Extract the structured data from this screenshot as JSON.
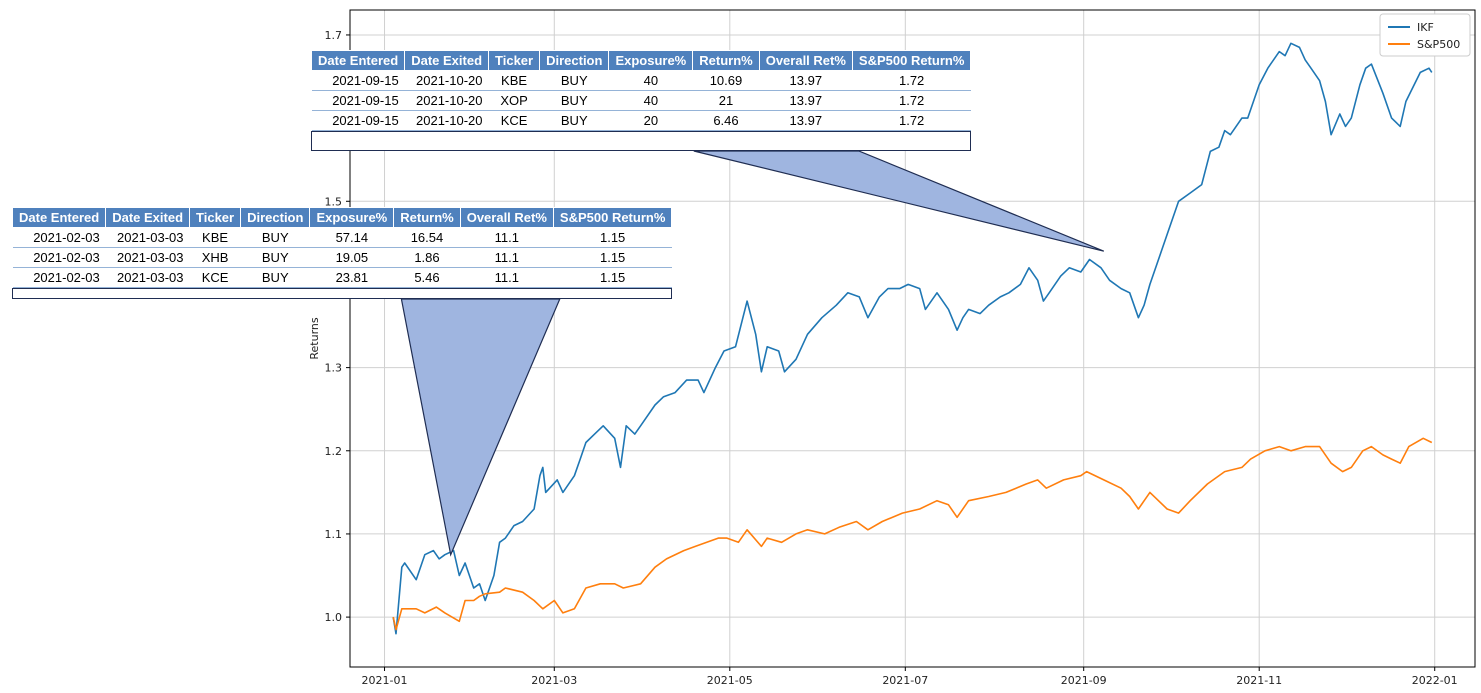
{
  "chart_data": {
    "type": "line",
    "title": "",
    "xlabel": "",
    "ylabel": "Returns",
    "x_tick_labels": [
      "2021-01",
      "2021-03",
      "2021-05",
      "2021-07",
      "2021-09",
      "2021-11",
      "2022-01"
    ],
    "y_tick_labels": [
      "1.0",
      "1.1",
      "1.2",
      "1.3",
      "1.5",
      "1.7"
    ],
    "xlim": [
      "2020-12-20",
      "2022-01-15"
    ],
    "ylim": [
      0.94,
      1.73
    ],
    "grid": true,
    "legend_position": "top-right",
    "series": [
      {
        "name": "IKF",
        "color": "#1f77b4",
        "points": [
          [
            "2021-01-04",
            1.0
          ],
          [
            "2021-01-05",
            0.98
          ],
          [
            "2021-01-07",
            1.06
          ],
          [
            "2021-01-08",
            1.065
          ],
          [
            "2021-01-12",
            1.045
          ],
          [
            "2021-01-15",
            1.075
          ],
          [
            "2021-01-18",
            1.08
          ],
          [
            "2021-01-20",
            1.07
          ],
          [
            "2021-01-22",
            1.075
          ],
          [
            "2021-01-25",
            1.08
          ],
          [
            "2021-01-27",
            1.05
          ],
          [
            "2021-01-29",
            1.065
          ],
          [
            "2021-02-01",
            1.035
          ],
          [
            "2021-02-03",
            1.04
          ],
          [
            "2021-02-05",
            1.02
          ],
          [
            "2021-02-08",
            1.05
          ],
          [
            "2021-02-10",
            1.09
          ],
          [
            "2021-02-12",
            1.095
          ],
          [
            "2021-02-15",
            1.11
          ],
          [
            "2021-02-18",
            1.115
          ],
          [
            "2021-02-22",
            1.13
          ],
          [
            "2021-02-24",
            1.17
          ],
          [
            "2021-02-25",
            1.18
          ],
          [
            "2021-02-26",
            1.15
          ],
          [
            "2021-03-02",
            1.165
          ],
          [
            "2021-03-04",
            1.15
          ],
          [
            "2021-03-08",
            1.17
          ],
          [
            "2021-03-10",
            1.19
          ],
          [
            "2021-03-12",
            1.21
          ],
          [
            "2021-03-15",
            1.22
          ],
          [
            "2021-03-18",
            1.23
          ],
          [
            "2021-03-22",
            1.215
          ],
          [
            "2021-03-24",
            1.18
          ],
          [
            "2021-03-26",
            1.23
          ],
          [
            "2021-03-29",
            1.22
          ],
          [
            "2021-03-31",
            1.23
          ],
          [
            "2021-04-05",
            1.255
          ],
          [
            "2021-04-08",
            1.265
          ],
          [
            "2021-04-12",
            1.27
          ],
          [
            "2021-04-16",
            1.285
          ],
          [
            "2021-04-20",
            1.285
          ],
          [
            "2021-04-22",
            1.27
          ],
          [
            "2021-04-26",
            1.3
          ],
          [
            "2021-04-29",
            1.32
          ],
          [
            "2021-05-03",
            1.325
          ],
          [
            "2021-05-07",
            1.38
          ],
          [
            "2021-05-10",
            1.34
          ],
          [
            "2021-05-12",
            1.295
          ],
          [
            "2021-05-14",
            1.325
          ],
          [
            "2021-05-18",
            1.32
          ],
          [
            "2021-05-20",
            1.295
          ],
          [
            "2021-05-24",
            1.31
          ],
          [
            "2021-05-28",
            1.34
          ],
          [
            "2021-06-02",
            1.36
          ],
          [
            "2021-06-07",
            1.375
          ],
          [
            "2021-06-11",
            1.39
          ],
          [
            "2021-06-15",
            1.385
          ],
          [
            "2021-06-18",
            1.36
          ],
          [
            "2021-06-22",
            1.385
          ],
          [
            "2021-06-25",
            1.395
          ],
          [
            "2021-06-29",
            1.395
          ],
          [
            "2021-07-02",
            1.4
          ],
          [
            "2021-07-06",
            1.395
          ],
          [
            "2021-07-08",
            1.37
          ],
          [
            "2021-07-12",
            1.39
          ],
          [
            "2021-07-16",
            1.37
          ],
          [
            "2021-07-19",
            1.345
          ],
          [
            "2021-07-21",
            1.36
          ],
          [
            "2021-07-23",
            1.37
          ],
          [
            "2021-07-27",
            1.365
          ],
          [
            "2021-07-30",
            1.375
          ],
          [
            "2021-08-03",
            1.385
          ],
          [
            "2021-08-06",
            1.39
          ],
          [
            "2021-08-10",
            1.4
          ],
          [
            "2021-08-13",
            1.42
          ],
          [
            "2021-08-16",
            1.405
          ],
          [
            "2021-08-18",
            1.38
          ],
          [
            "2021-08-20",
            1.39
          ],
          [
            "2021-08-24",
            1.41
          ],
          [
            "2021-08-27",
            1.42
          ],
          [
            "2021-08-31",
            1.415
          ],
          [
            "2021-09-03",
            1.43
          ],
          [
            "2021-09-07",
            1.42
          ],
          [
            "2021-09-10",
            1.405
          ],
          [
            "2021-09-14",
            1.395
          ],
          [
            "2021-09-17",
            1.39
          ],
          [
            "2021-09-20",
            1.36
          ],
          [
            "2021-09-22",
            1.375
          ],
          [
            "2021-09-24",
            1.4
          ],
          [
            "2021-09-27",
            1.43
          ],
          [
            "2021-09-30",
            1.46
          ],
          [
            "2021-10-04",
            1.5
          ],
          [
            "2021-10-08",
            1.51
          ],
          [
            "2021-10-12",
            1.52
          ],
          [
            "2021-10-15",
            1.56
          ],
          [
            "2021-10-18",
            1.565
          ],
          [
            "2021-10-20",
            1.585
          ],
          [
            "2021-10-22",
            1.58
          ],
          [
            "2021-10-26",
            1.6
          ],
          [
            "2021-10-28",
            1.6
          ],
          [
            "2021-11-01",
            1.64
          ],
          [
            "2021-11-04",
            1.66
          ],
          [
            "2021-11-08",
            1.68
          ],
          [
            "2021-11-10",
            1.675
          ],
          [
            "2021-11-12",
            1.69
          ],
          [
            "2021-11-15",
            1.685
          ],
          [
            "2021-11-17",
            1.67
          ],
          [
            "2021-11-19",
            1.66
          ],
          [
            "2021-11-22",
            1.645
          ],
          [
            "2021-11-24",
            1.62
          ],
          [
            "2021-11-26",
            1.58
          ],
          [
            "2021-11-29",
            1.605
          ],
          [
            "2021-12-01",
            1.59
          ],
          [
            "2021-12-03",
            1.6
          ],
          [
            "2021-12-06",
            1.64
          ],
          [
            "2021-12-08",
            1.66
          ],
          [
            "2021-12-10",
            1.665
          ],
          [
            "2021-12-14",
            1.63
          ],
          [
            "2021-12-17",
            1.6
          ],
          [
            "2021-12-20",
            1.59
          ],
          [
            "2021-12-22",
            1.62
          ],
          [
            "2021-12-27",
            1.655
          ],
          [
            "2021-12-30",
            1.66
          ],
          [
            "2021-12-31",
            1.655
          ]
        ]
      },
      {
        "name": "S&P500",
        "color": "#ff7f0e",
        "points": [
          [
            "2021-01-04",
            1.0
          ],
          [
            "2021-01-05",
            0.985
          ],
          [
            "2021-01-07",
            1.01
          ],
          [
            "2021-01-12",
            1.01
          ],
          [
            "2021-01-15",
            1.005
          ],
          [
            "2021-01-19",
            1.012
          ],
          [
            "2021-01-22",
            1.005
          ],
          [
            "2021-01-27",
            0.995
          ],
          [
            "2021-01-29",
            1.02
          ],
          [
            "2021-02-01",
            1.02
          ],
          [
            "2021-02-03",
            1.025
          ],
          [
            "2021-02-05",
            1.028
          ],
          [
            "2021-02-10",
            1.03
          ],
          [
            "2021-02-12",
            1.035
          ],
          [
            "2021-02-18",
            1.03
          ],
          [
            "2021-02-22",
            1.02
          ],
          [
            "2021-02-25",
            1.01
          ],
          [
            "2021-03-01",
            1.02
          ],
          [
            "2021-03-04",
            1.005
          ],
          [
            "2021-03-08",
            1.01
          ],
          [
            "2021-03-12",
            1.035
          ],
          [
            "2021-03-17",
            1.04
          ],
          [
            "2021-03-22",
            1.04
          ],
          [
            "2021-03-25",
            1.035
          ],
          [
            "2021-03-31",
            1.04
          ],
          [
            "2021-04-05",
            1.06
          ],
          [
            "2021-04-09",
            1.07
          ],
          [
            "2021-04-15",
            1.08
          ],
          [
            "2021-04-19",
            1.085
          ],
          [
            "2021-04-23",
            1.09
          ],
          [
            "2021-04-27",
            1.095
          ],
          [
            "2021-04-30",
            1.095
          ],
          [
            "2021-05-04",
            1.09
          ],
          [
            "2021-05-07",
            1.105
          ],
          [
            "2021-05-12",
            1.085
          ],
          [
            "2021-05-14",
            1.095
          ],
          [
            "2021-05-19",
            1.09
          ],
          [
            "2021-05-24",
            1.1
          ],
          [
            "2021-05-28",
            1.105
          ],
          [
            "2021-06-03",
            1.1
          ],
          [
            "2021-06-08",
            1.108
          ],
          [
            "2021-06-14",
            1.115
          ],
          [
            "2021-06-18",
            1.105
          ],
          [
            "2021-06-23",
            1.115
          ],
          [
            "2021-06-30",
            1.125
          ],
          [
            "2021-07-06",
            1.13
          ],
          [
            "2021-07-12",
            1.14
          ],
          [
            "2021-07-16",
            1.135
          ],
          [
            "2021-07-19",
            1.12
          ],
          [
            "2021-07-23",
            1.14
          ],
          [
            "2021-07-30",
            1.145
          ],
          [
            "2021-08-05",
            1.15
          ],
          [
            "2021-08-12",
            1.16
          ],
          [
            "2021-08-16",
            1.165
          ],
          [
            "2021-08-19",
            1.155
          ],
          [
            "2021-08-25",
            1.165
          ],
          [
            "2021-08-31",
            1.17
          ],
          [
            "2021-09-02",
            1.175
          ],
          [
            "2021-09-08",
            1.165
          ],
          [
            "2021-09-14",
            1.155
          ],
          [
            "2021-09-17",
            1.145
          ],
          [
            "2021-09-20",
            1.13
          ],
          [
            "2021-09-24",
            1.15
          ],
          [
            "2021-09-30",
            1.13
          ],
          [
            "2021-10-04",
            1.125
          ],
          [
            "2021-10-08",
            1.14
          ],
          [
            "2021-10-14",
            1.16
          ],
          [
            "2021-10-20",
            1.175
          ],
          [
            "2021-10-26",
            1.18
          ],
          [
            "2021-10-29",
            1.19
          ],
          [
            "2021-11-03",
            1.2
          ],
          [
            "2021-11-08",
            1.205
          ],
          [
            "2021-11-12",
            1.2
          ],
          [
            "2021-11-17",
            1.205
          ],
          [
            "2021-11-22",
            1.205
          ],
          [
            "2021-11-26",
            1.185
          ],
          [
            "2021-11-30",
            1.175
          ],
          [
            "2021-12-03",
            1.18
          ],
          [
            "2021-12-07",
            1.2
          ],
          [
            "2021-12-10",
            1.205
          ],
          [
            "2021-12-14",
            1.195
          ],
          [
            "2021-12-17",
            1.19
          ],
          [
            "2021-12-20",
            1.185
          ],
          [
            "2021-12-23",
            1.205
          ],
          [
            "2021-12-28",
            1.215
          ],
          [
            "2021-12-31",
            1.21
          ]
        ]
      }
    ],
    "tables": [
      {
        "columns": [
          "Date Entered",
          "Date Exited",
          "Ticker",
          "Direction",
          "Exposure%",
          "Return%",
          "Overall Ret%",
          "S&P500 Return%"
        ],
        "rows": [
          [
            "2021-09-15",
            "2021-10-20",
            "KBE",
            "BUY",
            "40",
            "10.69",
            "13.97",
            "1.72"
          ],
          [
            "2021-09-15",
            "2021-10-20",
            "XOP",
            "BUY",
            "40",
            "21",
            "13.97",
            "1.72"
          ],
          [
            "2021-09-15",
            "2021-10-20",
            "KCE",
            "BUY",
            "20",
            "6.46",
            "13.97",
            "1.72"
          ]
        ],
        "callout_points_to": [
          "2021-09-08",
          1.44
        ]
      },
      {
        "columns": [
          "Date Entered",
          "Date Exited",
          "Ticker",
          "Direction",
          "Exposure%",
          "Return%",
          "Overall Ret%",
          "S&P500 Return%"
        ],
        "rows": [
          [
            "2021-02-03",
            "2021-03-03",
            "KBE",
            "BUY",
            "57.14",
            "16.54",
            "11.1",
            "1.15"
          ],
          [
            "2021-02-03",
            "2021-03-03",
            "XHB",
            "BUY",
            "19.05",
            "1.86",
            "11.1",
            "1.15"
          ],
          [
            "2021-02-03",
            "2021-03-03",
            "KCE",
            "BUY",
            "23.81",
            "5.46",
            "11.1",
            "1.15"
          ]
        ],
        "callout_points_to": [
          "2021-01-24",
          1.075
        ]
      }
    ]
  }
}
